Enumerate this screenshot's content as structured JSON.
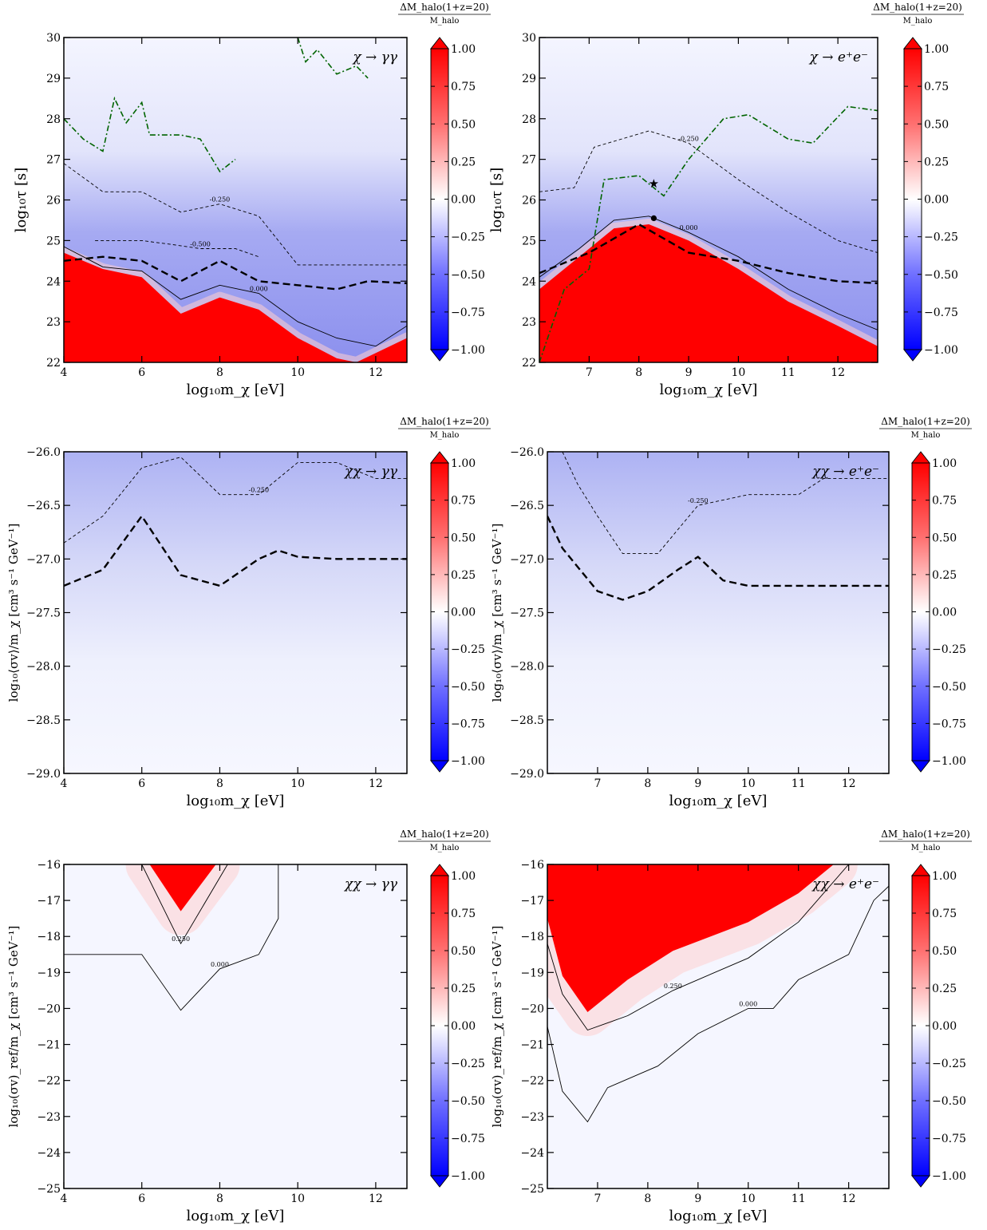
{
  "figure": {
    "colorbar_title_num": "ΔM_halo(1+z=20)",
    "colorbar_title_den": "M_halo",
    "colorbar_ticks": [
      "1.00",
      "0.75",
      "0.50",
      "0.25",
      "0.00",
      "−0.25",
      "−0.50",
      "−0.75",
      "−1.00"
    ],
    "colors": {
      "positive": "#ff0000",
      "negative": "#0000ff",
      "neutral": "#ffffff",
      "bound_line": "#006400"
    }
  },
  "chart_data": [
    {
      "type": "heatmap",
      "panel": "decay-gamma",
      "annotation": "χ → γγ",
      "xlabel": "log₁₀m_χ [eV]",
      "ylabel": "log₁₀τ [s]",
      "xlim": [
        4,
        12.8
      ],
      "ylim": [
        22,
        30
      ],
      "xticks": [
        4,
        6,
        8,
        10,
        12
      ],
      "xtick_labels": [
        "4",
        "6",
        "8",
        "10",
        "12"
      ],
      "yticks": [
        22,
        23,
        24,
        25,
        26,
        27,
        28,
        29,
        30
      ],
      "ytick_labels": [
        "22",
        "23",
        "24",
        "25",
        "26",
        "27",
        "28",
        "29",
        "30"
      ],
      "color_range": [
        -1,
        1
      ],
      "positive_region": [
        [
          4,
          22
        ],
        [
          4,
          24.7
        ],
        [
          5,
          24.3
        ],
        [
          6,
          24.1
        ],
        [
          7,
          23.2
        ],
        [
          8,
          23.6
        ],
        [
          9,
          23.3
        ],
        [
          10,
          22.6
        ],
        [
          11,
          22.1
        ],
        [
          11.5,
          22
        ],
        [
          12.8,
          22.6
        ],
        [
          12.8,
          22
        ]
      ],
      "contour_levels": [
        {
          "label": "-0.250",
          "points": [
            [
              4,
              26.9
            ],
            [
              5,
              26.2
            ],
            [
              6,
              26.2
            ],
            [
              7,
              25.7
            ],
            [
              8,
              25.9
            ],
            [
              9,
              25.6
            ],
            [
              10,
              24.4
            ],
            [
              11,
              24.4
            ],
            [
              12.8,
              24.4
            ]
          ]
        },
        {
          "label": "-0.500",
          "points": [
            [
              4.8,
              25.0
            ],
            [
              6,
              25.0
            ],
            [
              6.8,
              24.9
            ],
            [
              7.5,
              24.8
            ],
            [
              8.4,
              24.8
            ],
            [
              9,
              24.6
            ]
          ]
        },
        {
          "label": "0.000",
          "points": [
            [
              4,
              24.85
            ],
            [
              5,
              24.35
            ],
            [
              6,
              24.25
            ],
            [
              7,
              23.55
            ],
            [
              8,
              23.9
            ],
            [
              9,
              23.7
            ],
            [
              10,
              23.0
            ],
            [
              11,
              22.6
            ],
            [
              12,
              22.4
            ],
            [
              12.8,
              22.9
            ]
          ]
        }
      ],
      "fermi_bound": [
        [
          4,
          28.0
        ],
        [
          4.5,
          27.5
        ],
        [
          5,
          27.2
        ],
        [
          5.3,
          28.5
        ],
        [
          5.6,
          27.9
        ],
        [
          6,
          28.4
        ],
        [
          6.2,
          27.6
        ],
        [
          7,
          27.6
        ],
        [
          7.5,
          27.5
        ],
        [
          8,
          26.7
        ],
        [
          8.4,
          27.0
        ]
      ],
      "fermi_bound_2": [
        [
          10,
          30
        ],
        [
          10.2,
          29.4
        ],
        [
          10.5,
          29.7
        ],
        [
          11,
          29.1
        ],
        [
          11.5,
          29.3
        ],
        [
          11.8,
          29.0
        ]
      ],
      "reference_line": [
        [
          4,
          24.5
        ],
        [
          5,
          24.6
        ],
        [
          6,
          24.5
        ],
        [
          7,
          24.0
        ],
        [
          8,
          24.5
        ],
        [
          9,
          24.0
        ],
        [
          10,
          23.9
        ],
        [
          11,
          23.8
        ],
        [
          11.8,
          24.0
        ],
        [
          12.8,
          23.95
        ]
      ]
    },
    {
      "type": "heatmap",
      "panel": "decay-ee",
      "annotation": "χ → e⁺e⁻",
      "xlabel": "log₁₀m_χ [eV]",
      "ylabel": "log₁₀τ [s]",
      "xlim": [
        6,
        12.8
      ],
      "ylim": [
        22,
        30
      ],
      "xticks": [
        7,
        8,
        9,
        10,
        11,
        12
      ],
      "xtick_labels": [
        "7",
        "8",
        "9",
        "10",
        "11",
        "12"
      ],
      "yticks": [
        22,
        23,
        24,
        25,
        26,
        27,
        28,
        29,
        30
      ],
      "ytick_labels": [
        "22",
        "23",
        "24",
        "25",
        "26",
        "27",
        "28",
        "29",
        "30"
      ],
      "color_range": [
        -1,
        1
      ],
      "positive_region": [
        [
          6,
          22
        ],
        [
          6,
          23.8
        ],
        [
          6.8,
          24.6
        ],
        [
          7.5,
          25.3
        ],
        [
          8.2,
          25.4
        ],
        [
          9,
          25.0
        ],
        [
          10,
          24.3
        ],
        [
          11,
          23.5
        ],
        [
          12,
          22.9
        ],
        [
          12.8,
          22.4
        ],
        [
          12.8,
          22
        ]
      ],
      "contour_levels": [
        {
          "label": "-0.250",
          "points": [
            [
              6,
              26.2
            ],
            [
              6.7,
              26.3
            ],
            [
              7.1,
              27.3
            ],
            [
              8.2,
              27.7
            ],
            [
              9,
              27.4
            ],
            [
              10,
              26.5
            ],
            [
              11,
              25.7
            ],
            [
              12,
              25.0
            ],
            [
              12.8,
              24.7
            ]
          ]
        },
        {
          "label": "0.000",
          "points": [
            [
              6,
              24.1
            ],
            [
              6.8,
              24.8
            ],
            [
              7.5,
              25.5
            ],
            [
              8.2,
              25.6
            ],
            [
              9,
              25.2
            ],
            [
              10,
              24.6
            ],
            [
              11,
              23.8
            ],
            [
              12,
              23.2
            ],
            [
              12.8,
              22.8
            ]
          ]
        }
      ],
      "fermi_bound": [
        [
          6,
          22
        ],
        [
          6.5,
          23.8
        ],
        [
          7,
          24.3
        ],
        [
          7.3,
          26.5
        ],
        [
          8,
          26.6
        ],
        [
          8.5,
          26.1
        ],
        [
          9,
          27.0
        ],
        [
          9.7,
          28.0
        ],
        [
          10.2,
          28.1
        ],
        [
          11,
          27.5
        ],
        [
          11.5,
          27.4
        ],
        [
          12.2,
          28.3
        ],
        [
          12.8,
          28.2
        ]
      ],
      "reference_line": [
        [
          6,
          24.2
        ],
        [
          7,
          24.7
        ],
        [
          8,
          25.4
        ],
        [
          9,
          24.7
        ],
        [
          10,
          24.5
        ],
        [
          11,
          24.2
        ],
        [
          12,
          24.0
        ],
        [
          12.8,
          23.95
        ]
      ],
      "markers": [
        {
          "shape": "star",
          "x": 8.3,
          "y": 26.4
        },
        {
          "shape": "dot",
          "x": 8.3,
          "y": 25.55
        }
      ]
    },
    {
      "type": "heatmap",
      "panel": "swave-gamma",
      "annotation": "χχ → γγ",
      "xlabel": "log₁₀m_χ [eV]",
      "ylabel": "log₁₀⟨σv⟩/m_χ [cm³ s⁻¹ GeV⁻¹]",
      "xlim": [
        4,
        12.8
      ],
      "ylim": [
        -29,
        -26
      ],
      "xticks": [
        4,
        6,
        8,
        10,
        12
      ],
      "xtick_labels": [
        "4",
        "6",
        "8",
        "10",
        "12"
      ],
      "yticks": [
        -29,
        -28.5,
        -28,
        -27.5,
        -27,
        -26.5,
        -26
      ],
      "ytick_labels": [
        "−29.0",
        "−28.5",
        "−28.0",
        "−27.5",
        "−27.0",
        "−26.5",
        "−26.0"
      ],
      "color_range": [
        -1,
        1
      ],
      "contour_levels": [
        {
          "label": "-0.250",
          "points": [
            [
              4,
              -26.85
            ],
            [
              5,
              -26.6
            ],
            [
              6,
              -26.15
            ],
            [
              7,
              -26.05
            ],
            [
              8,
              -26.4
            ],
            [
              9,
              -26.4
            ],
            [
              10,
              -26.1
            ],
            [
              11,
              -26.1
            ],
            [
              12,
              -26.25
            ],
            [
              12.8,
              -26.25
            ]
          ]
        }
      ],
      "reference_line": [
        [
          4,
          -27.25
        ],
        [
          5,
          -27.1
        ],
        [
          6,
          -26.6
        ],
        [
          7,
          -27.15
        ],
        [
          8,
          -27.25
        ],
        [
          9,
          -27.0
        ],
        [
          9.5,
          -26.92
        ],
        [
          10,
          -26.98
        ],
        [
          11,
          -27.0
        ],
        [
          12.8,
          -27.0
        ]
      ]
    },
    {
      "type": "heatmap",
      "panel": "swave-ee",
      "annotation": "χχ → e⁺e⁻",
      "xlabel": "log₁₀m_χ [eV]",
      "ylabel": "log₁₀⟨σv⟩/m_χ [cm³ s⁻¹ GeV⁻¹]",
      "xlim": [
        6,
        12.8
      ],
      "ylim": [
        -29,
        -26
      ],
      "xticks": [
        7,
        8,
        9,
        10,
        11,
        12
      ],
      "xtick_labels": [
        "7",
        "8",
        "9",
        "10",
        "11",
        "12"
      ],
      "yticks": [
        -29,
        -28.5,
        -28,
        -27.5,
        -27,
        -26.5,
        -26
      ],
      "ytick_labels": [
        "−29.0",
        "−28.5",
        "−28.0",
        "−27.5",
        "−27.0",
        "−26.5",
        "−26.0"
      ],
      "color_range": [
        -1,
        1
      ],
      "contour_levels": [
        {
          "label": "-0.250",
          "points": [
            [
              6.3,
              -26.0
            ],
            [
              6.6,
              -26.3
            ],
            [
              7,
              -26.6
            ],
            [
              7.5,
              -26.95
            ],
            [
              8.2,
              -26.95
            ],
            [
              9,
              -26.5
            ],
            [
              10,
              -26.4
            ],
            [
              11,
              -26.4
            ],
            [
              11.5,
              -26.25
            ],
            [
              12.8,
              -26.25
            ]
          ]
        }
      ],
      "reference_line": [
        [
          6,
          -26.6
        ],
        [
          6.3,
          -26.9
        ],
        [
          7,
          -27.3
        ],
        [
          7.5,
          -27.38
        ],
        [
          8,
          -27.3
        ],
        [
          8.6,
          -27.1
        ],
        [
          9,
          -26.98
        ],
        [
          9.5,
          -27.2
        ],
        [
          10,
          -27.25
        ],
        [
          11,
          -27.25
        ],
        [
          12.8,
          -27.25
        ]
      ]
    },
    {
      "type": "heatmap",
      "panel": "pwave-gamma",
      "annotation": "χχ → γγ",
      "xlabel": "log₁₀m_χ [eV]",
      "ylabel": "log₁₀(σv)_ref/m_χ [cm³ s⁻¹ GeV⁻¹]",
      "xlim": [
        4,
        12.8
      ],
      "ylim": [
        -25,
        -16
      ],
      "xticks": [
        4,
        6,
        8,
        10,
        12
      ],
      "xtick_labels": [
        "4",
        "6",
        "8",
        "10",
        "12"
      ],
      "yticks": [
        -25,
        -24,
        -23,
        -22,
        -21,
        -20,
        -19,
        -18,
        -17,
        -16
      ],
      "ytick_labels": [
        "−25",
        "−24",
        "−23",
        "−22",
        "−21",
        "−20",
        "−19",
        "−18",
        "−17",
        "−16"
      ],
      "color_range": [
        -1,
        1
      ],
      "positive_region": [
        [
          6.2,
          -16
        ],
        [
          7,
          -17.3
        ],
        [
          7.9,
          -16
        ]
      ],
      "contour_levels": [
        {
          "label": "0.000",
          "points": [
            [
              4,
              -18.5
            ],
            [
              6,
              -18.5
            ],
            [
              7,
              -20.05
            ],
            [
              8,
              -18.9
            ],
            [
              9,
              -18.5
            ],
            [
              9.5,
              -17.5
            ],
            [
              9.5,
              -16
            ]
          ]
        },
        {
          "label": "0.250",
          "points": [
            [
              6,
              -16
            ],
            [
              7,
              -18.2
            ],
            [
              8.2,
              -16
            ]
          ]
        }
      ]
    },
    {
      "type": "heatmap",
      "panel": "pwave-ee",
      "annotation": "χχ → e⁺e⁻",
      "xlabel": "log₁₀m_χ [eV]",
      "ylabel": "log₁₀(σv)_ref/m_χ [cm³ s⁻¹ GeV⁻¹]",
      "xlim": [
        6,
        12.8
      ],
      "ylim": [
        -25,
        -16
      ],
      "xticks": [
        7,
        8,
        9,
        10,
        11,
        12
      ],
      "xtick_labels": [
        "7",
        "8",
        "9",
        "10",
        "11",
        "12"
      ],
      "yticks": [
        -25,
        -24,
        -23,
        -22,
        -21,
        -20,
        -19,
        -18,
        -17,
        -16
      ],
      "ytick_labels": [
        "−25",
        "−24",
        "−23",
        "−22",
        "−21",
        "−20",
        "−19",
        "−18",
        "−17",
        "−16"
      ],
      "color_range": [
        -1,
        1
      ],
      "positive_region": [
        [
          6,
          -16
        ],
        [
          6,
          -17.5
        ],
        [
          6.3,
          -19.1
        ],
        [
          6.8,
          -20.1
        ],
        [
          7.6,
          -19.2
        ],
        [
          8.5,
          -18.4
        ],
        [
          10,
          -17.6
        ],
        [
          11,
          -16.8
        ],
        [
          11.7,
          -16
        ]
      ],
      "contour_levels": [
        {
          "label": "0.250",
          "points": [
            [
              6,
              -18.2
            ],
            [
              6.3,
              -19.6
            ],
            [
              6.8,
              -20.6
            ],
            [
              7.6,
              -20.2
            ],
            [
              8.5,
              -19.5
            ],
            [
              10,
              -18.6
            ],
            [
              11,
              -17.6
            ],
            [
              12,
              -16
            ]
          ]
        },
        {
          "label": "0.000",
          "points": [
            [
              6,
              -20.5
            ],
            [
              6.3,
              -22.3
            ],
            [
              6.8,
              -23.15
            ],
            [
              7.2,
              -22.2
            ],
            [
              8.2,
              -21.6
            ],
            [
              9,
              -20.7
            ],
            [
              10,
              -20.0
            ],
            [
              10.5,
              -20.0
            ],
            [
              11,
              -19.2
            ],
            [
              12,
              -18.5
            ],
            [
              12.5,
              -17.0
            ],
            [
              12.8,
              -16.6
            ]
          ]
        }
      ]
    }
  ]
}
